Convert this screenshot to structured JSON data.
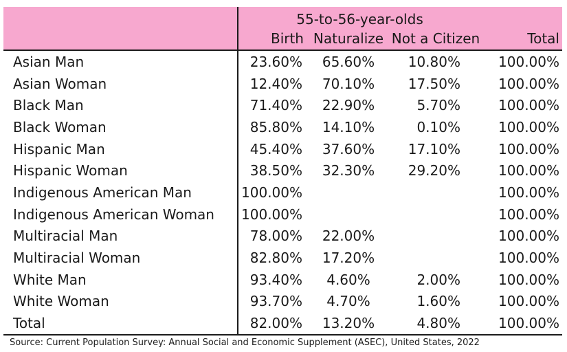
{
  "table": {
    "group_header": "55-to-56-year-olds",
    "columns": [
      "Birth",
      "Naturalize",
      "Not a Citizen",
      "Total"
    ],
    "rows": [
      {
        "label": "Asian Man",
        "birth": "23.60%",
        "naturalize": "65.60%",
        "not_citizen": "10.80%",
        "total": "100.00%"
      },
      {
        "label": "Asian Woman",
        "birth": "12.40%",
        "naturalize": "70.10%",
        "not_citizen": "17.50%",
        "total": "100.00%"
      },
      {
        "label": "Black Man",
        "birth": "71.40%",
        "naturalize": "22.90%",
        "not_citizen": "5.70%",
        "total": "100.00%"
      },
      {
        "label": "Black Woman",
        "birth": "85.80%",
        "naturalize": "14.10%",
        "not_citizen": "0.10%",
        "total": "100.00%"
      },
      {
        "label": "Hispanic Man",
        "birth": "45.40%",
        "naturalize": "37.60%",
        "not_citizen": "17.10%",
        "total": "100.00%"
      },
      {
        "label": "Hispanic Woman",
        "birth": "38.50%",
        "naturalize": "32.30%",
        "not_citizen": "29.20%",
        "total": "100.00%"
      },
      {
        "label": "Indigenous American Man",
        "birth": "100.00%",
        "naturalize": "",
        "not_citizen": "",
        "total": "100.00%"
      },
      {
        "label": "Indigenous American Woman",
        "birth": "100.00%",
        "naturalize": "",
        "not_citizen": "",
        "total": "100.00%"
      },
      {
        "label": "Multiracial Man",
        "birth": "78.00%",
        "naturalize": "22.00%",
        "not_citizen": "",
        "total": "100.00%"
      },
      {
        "label": "Multiracial Woman",
        "birth": "82.80%",
        "naturalize": "17.20%",
        "not_citizen": "",
        "total": "100.00%"
      },
      {
        "label": "White Man",
        "birth": "93.40%",
        "naturalize": "4.60%",
        "not_citizen": "2.00%",
        "total": "100.00%"
      },
      {
        "label": "White Woman",
        "birth": "93.70%",
        "naturalize": "4.70%",
        "not_citizen": "1.60%",
        "total": "100.00%"
      },
      {
        "label": "Total",
        "birth": "82.00%",
        "naturalize": "13.20%",
        "not_citizen": "4.80%",
        "total": "100.00%"
      }
    ]
  },
  "source": "Source: Current Population Survey: Annual Social and Economic Supplement (ASEC), United States, 2022",
  "colors": {
    "header_background": "#f7a8cf",
    "rule": "#1a1a1a"
  }
}
